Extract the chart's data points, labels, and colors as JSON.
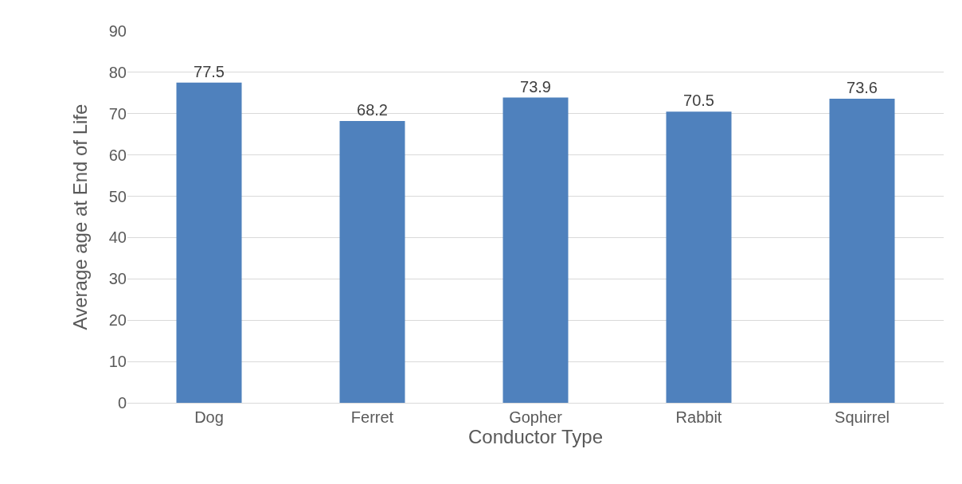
{
  "chart_data": {
    "type": "bar",
    "xlabel": "Conductor Type",
    "ylabel": "Average age at End of Life",
    "categories": [
      "Dog",
      "Ferret",
      "Gopher",
      "Rabbit",
      "Squirrel"
    ],
    "values": [
      77.5,
      68.2,
      73.9,
      70.5,
      73.6
    ],
    "color": "#4f81bd",
    "ylim": [
      0,
      90
    ],
    "yticks": [
      0,
      10,
      20,
      30,
      40,
      50,
      60,
      70,
      80,
      90
    ],
    "grid": "y",
    "data_labels": true
  }
}
